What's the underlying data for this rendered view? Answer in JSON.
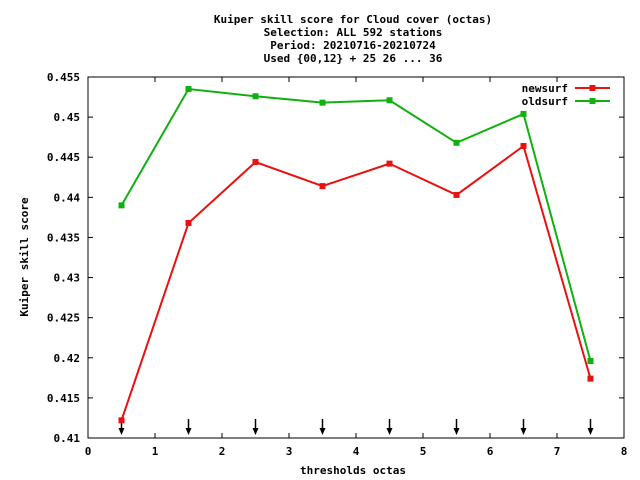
{
  "chart_data": {
    "type": "line",
    "title_lines": [
      "Kuiper skill score  for Cloud cover (octas)",
      "Selection: ALL    592 stations",
      "Period: 20210716-20210724",
      "Used {00,12} + 25 26 ... 36"
    ],
    "xlabel": "thresholds octas",
    "ylabel": "Kuiper skill score",
    "xlim": [
      0,
      8
    ],
    "ylim": [
      0.41,
      0.455
    ],
    "xticks": [
      "0",
      "1",
      "2",
      "3",
      "4",
      "5",
      "6",
      "7",
      "8"
    ],
    "yticks": [
      "0.41",
      "0.415",
      "0.42",
      "0.425",
      "0.43",
      "0.435",
      "0.44",
      "0.445",
      "0.45",
      "0.455"
    ],
    "legend_position": "top-right",
    "grid": false,
    "x": [
      0.5,
      1.5,
      2.5,
      3.5,
      4.5,
      5.5,
      6.5,
      7.5
    ],
    "arrow_markers_x": [
      0.5,
      1.5,
      2.5,
      3.5,
      4.5,
      5.5,
      6.5,
      7.5
    ],
    "series": [
      {
        "name": "newsurf",
        "color": "#e8110f",
        "values": [
          0.4122,
          0.4368,
          0.4444,
          0.4414,
          0.4442,
          0.4403,
          0.4464,
          0.4174
        ]
      },
      {
        "name": "oldsurf",
        "color": "#10b010",
        "values": [
          0.439,
          0.4535,
          0.4526,
          0.4518,
          0.4521,
          0.4468,
          0.4504,
          0.4196
        ]
      }
    ]
  }
}
